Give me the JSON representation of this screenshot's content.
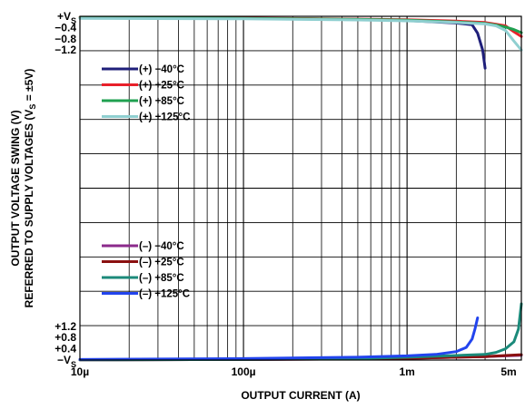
{
  "chart_data": {
    "type": "line",
    "xlabel": "OUTPUT CURRENT (A)",
    "ylabel_line1": "OUTPUT VOLTAGE SWING (V)",
    "ylabel_line2": "REFERRED TO SUPPLY VOLTAGES (V",
    "ylabel_sub": "S",
    "ylabel_tail": " = ±5V)",
    "x_scale": "log",
    "xlim": [
      1e-05,
      0.005
    ],
    "x_ticks": [
      {
        "value": 1e-05,
        "label": "10µ"
      },
      {
        "value": 0.0001,
        "label": "100µ"
      },
      {
        "value": 0.001,
        "label": "1m"
      },
      {
        "value": 0.005,
        "label": "5m"
      }
    ],
    "upper_y_ticks": [
      {
        "value": 0,
        "label": "+V",
        "sub": "S"
      },
      {
        "value": -0.4,
        "label": "−0.4"
      },
      {
        "value": -0.8,
        "label": "−0.8"
      },
      {
        "value": -1.2,
        "label": "−1.2"
      }
    ],
    "lower_y_ticks": [
      {
        "value": 0,
        "label": "−V",
        "sub": "S"
      },
      {
        "value": 0.4,
        "label": "+0.4"
      },
      {
        "value": 0.8,
        "label": "+0.8"
      },
      {
        "value": 1.2,
        "label": "+1.2"
      }
    ],
    "grid": true,
    "legend_upper": "top-left",
    "legend_lower": "bottom-left",
    "series": [
      {
        "name": "(+) −40°C",
        "group": "upper",
        "color": "#1f1f7a",
        "points": [
          [
            1e-05,
            -0.05
          ],
          [
            0.0001,
            -0.07
          ],
          [
            0.0005,
            -0.11
          ],
          [
            0.001,
            -0.15
          ],
          [
            0.002,
            -0.24
          ],
          [
            0.0025,
            -0.3
          ],
          [
            0.0027,
            -0.6
          ],
          [
            0.0029,
            -1.2
          ],
          [
            0.003,
            -1.85
          ]
        ]
      },
      {
        "name": "(+) +25°C",
        "group": "upper",
        "color": "#e8202a",
        "points": [
          [
            1e-05,
            -0.04
          ],
          [
            0.0001,
            -0.06
          ],
          [
            0.0005,
            -0.1
          ],
          [
            0.001,
            -0.12
          ],
          [
            0.002,
            -0.17
          ],
          [
            0.003,
            -0.22
          ],
          [
            0.0035,
            -0.28
          ],
          [
            0.004,
            -0.34
          ],
          [
            0.0045,
            -0.55
          ],
          [
            0.005,
            -0.72
          ]
        ]
      },
      {
        "name": "(+) +85°C",
        "group": "upper",
        "color": "#1fa050",
        "points": [
          [
            1e-05,
            -0.05
          ],
          [
            0.0001,
            -0.07
          ],
          [
            0.0005,
            -0.11
          ],
          [
            0.001,
            -0.14
          ],
          [
            0.002,
            -0.2
          ],
          [
            0.003,
            -0.25
          ],
          [
            0.0035,
            -0.31
          ],
          [
            0.004,
            -0.38
          ],
          [
            0.0045,
            -0.47
          ],
          [
            0.005,
            -0.58
          ]
        ]
      },
      {
        "name": "(+) +125°C",
        "group": "upper",
        "color": "#8fcfd0",
        "points": [
          [
            1e-05,
            -0.07
          ],
          [
            0.0001,
            -0.09
          ],
          [
            0.0005,
            -0.13
          ],
          [
            0.001,
            -0.16
          ],
          [
            0.002,
            -0.22
          ],
          [
            0.003,
            -0.27
          ],
          [
            0.0035,
            -0.34
          ],
          [
            0.004,
            -0.5
          ],
          [
            0.0045,
            -0.88
          ],
          [
            0.005,
            -1.2
          ]
        ]
      },
      {
        "name": "(–) −40°C",
        "group": "lower",
        "color": "#8b2a8b",
        "points": [
          [
            1e-05,
            0.005
          ],
          [
            0.0001,
            0.02
          ],
          [
            0.0005,
            0.04
          ],
          [
            0.001,
            0.06
          ],
          [
            0.002,
            0.1
          ],
          [
            0.003,
            0.12
          ],
          [
            0.004,
            0.15
          ],
          [
            0.005,
            0.17
          ]
        ]
      },
      {
        "name": "(–) +25°C",
        "group": "lower",
        "color": "#8b1010",
        "points": [
          [
            1e-05,
            0.005
          ],
          [
            0.0001,
            0.02
          ],
          [
            0.0005,
            0.04
          ],
          [
            0.001,
            0.06
          ],
          [
            0.002,
            0.1
          ],
          [
            0.003,
            0.12
          ],
          [
            0.004,
            0.16
          ],
          [
            0.005,
            0.19
          ]
        ]
      },
      {
        "name": "(–) +85°C",
        "group": "lower",
        "color": "#1b8a7a",
        "points": [
          [
            1e-05,
            0.005
          ],
          [
            0.0001,
            0.02
          ],
          [
            0.0005,
            0.05
          ],
          [
            0.001,
            0.1
          ],
          [
            0.002,
            0.16
          ],
          [
            0.003,
            0.2
          ],
          [
            0.0035,
            0.27
          ],
          [
            0.004,
            0.4
          ],
          [
            0.0045,
            0.65
          ],
          [
            0.0048,
            1.1
          ],
          [
            0.005,
            2.0
          ]
        ]
      },
      {
        "name": "(–) +125°C",
        "group": "lower",
        "color": "#2244ee",
        "points": [
          [
            1e-05,
            0.02
          ],
          [
            0.0001,
            0.05
          ],
          [
            0.0005,
            0.1
          ],
          [
            0.001,
            0.15
          ],
          [
            0.0015,
            0.2
          ],
          [
            0.002,
            0.3
          ],
          [
            0.0023,
            0.45
          ],
          [
            0.0025,
            0.75
          ],
          [
            0.0026,
            1.1
          ],
          [
            0.0027,
            1.5
          ]
        ]
      }
    ]
  }
}
